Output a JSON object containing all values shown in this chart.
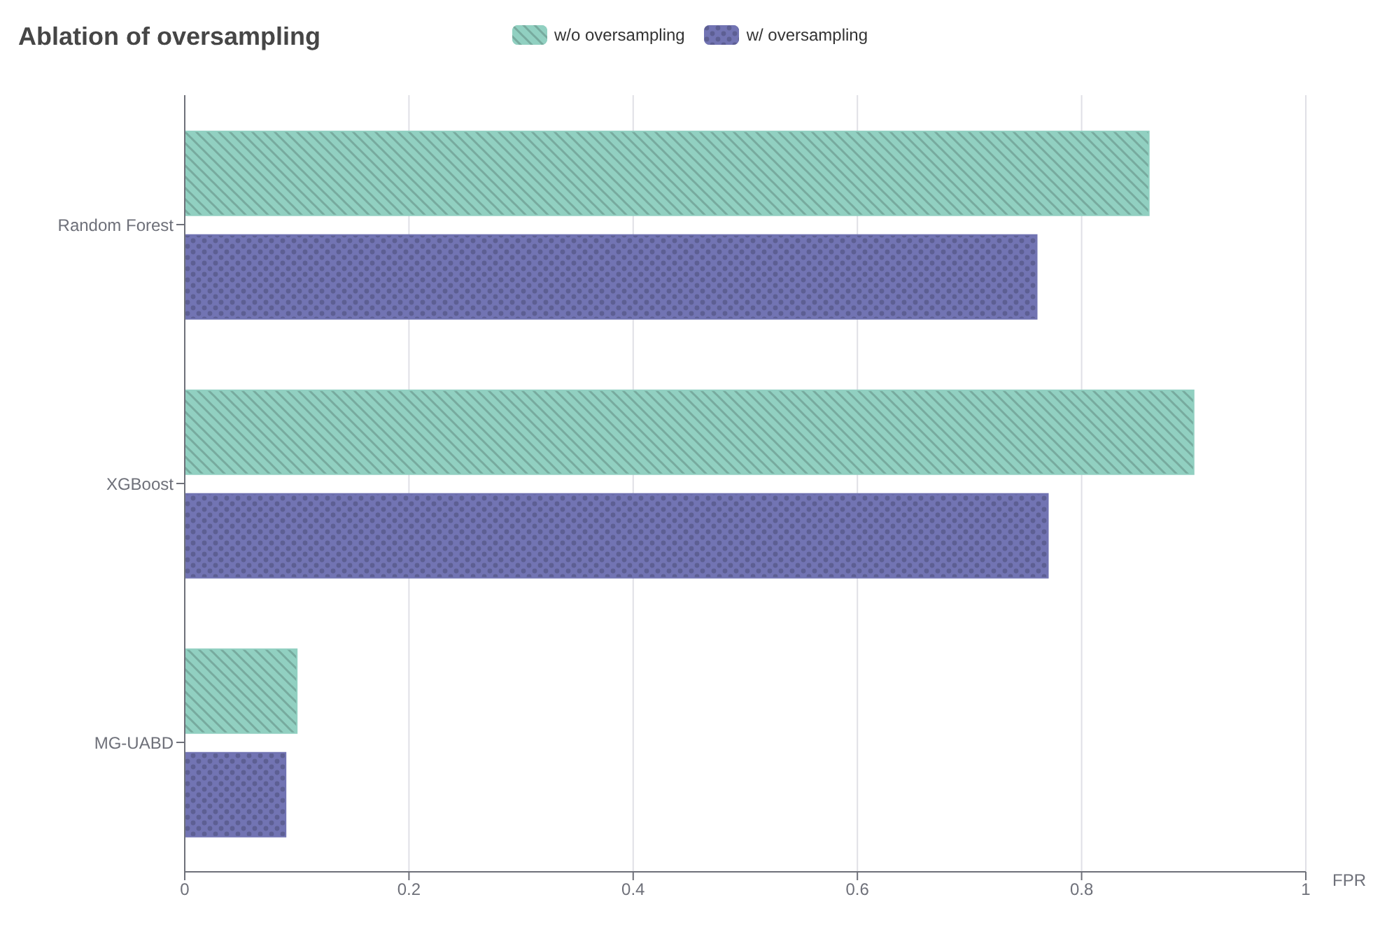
{
  "chart_data": {
    "type": "bar",
    "orientation": "horizontal",
    "title": "Ablation of oversampling",
    "xlabel": "FPR",
    "categories": [
      "Random Forest",
      "XGBoost",
      "MG-UABD"
    ],
    "series": [
      {
        "name": "w/o oversampling",
        "color": "#91d0c1",
        "values": [
          0.86,
          0.9,
          0.1
        ]
      },
      {
        "name": "w/ oversampling",
        "color": "#7274b3",
        "values": [
          0.76,
          0.77,
          0.09
        ]
      }
    ],
    "xlim": [
      0,
      1
    ],
    "xticks": [
      0,
      0.2,
      0.4,
      0.6,
      0.8,
      1
    ],
    "grid": "x",
    "legend": "top"
  }
}
